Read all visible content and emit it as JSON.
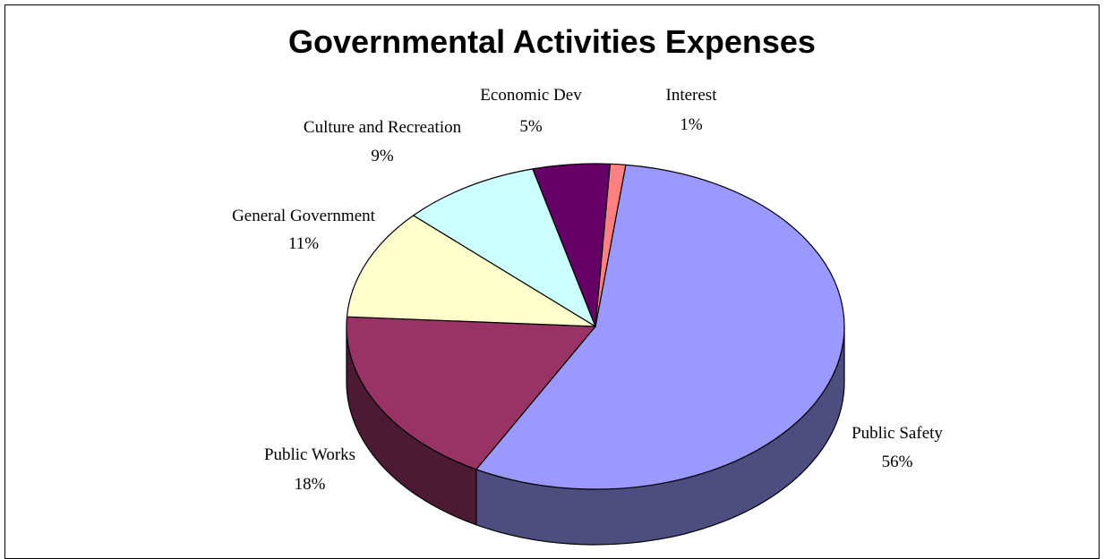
{
  "chart_data": {
    "type": "pie",
    "title": "Governmental Activities Expenses",
    "three_d": true,
    "slices": [
      {
        "label": "Public Safety",
        "value": 56,
        "value_label": "56%",
        "color": "#9999ff",
        "side_color": "#4d4d80"
      },
      {
        "label": "Public Works",
        "value": 18,
        "value_label": "18%",
        "color": "#993366",
        "side_color": "#4d1a33"
      },
      {
        "label": "General Government",
        "value": 11,
        "value_label": "11%",
        "color": "#ffffcc",
        "side_color": "#808066"
      },
      {
        "label": "Culture and Recreation",
        "value": 9,
        "value_label": "9%",
        "color": "#ccffff",
        "side_color": "#668080"
      },
      {
        "label": "Economic Dev",
        "value": 5,
        "value_label": "5%",
        "color": "#660066",
        "side_color": "#330033"
      },
      {
        "label": "Interest",
        "value": 1,
        "value_label": "1%",
        "color": "#ff8080",
        "side_color": "#804040"
      }
    ]
  }
}
